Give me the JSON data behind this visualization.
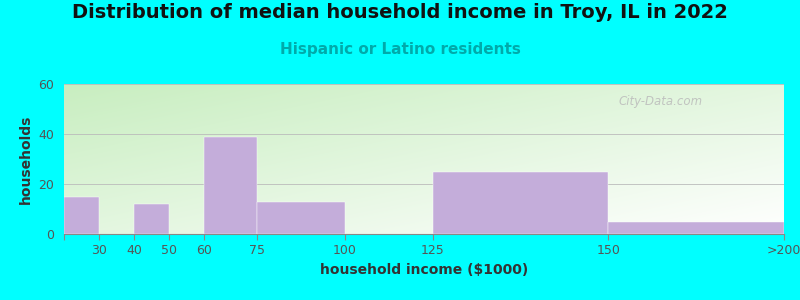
{
  "title": "Distribution of median household income in Troy, IL in 2022",
  "subtitle": "Hispanic or Latino residents",
  "xlabel": "household income ($1000)",
  "ylabel": "households",
  "background_outer": "#00FFFF",
  "bar_color": "#C4ADDA",
  "categories": [
    "30",
    "40",
    "50",
    "60",
    "75",
    "100",
    "125",
    "150",
    ">200"
  ],
  "values": [
    15,
    0,
    12,
    0,
    39,
    13,
    0,
    25,
    5
  ],
  "bar_lefts": [
    20,
    30,
    40,
    50,
    60,
    75,
    100,
    125,
    175
  ],
  "bar_rights": [
    30,
    40,
    50,
    60,
    75,
    100,
    125,
    175,
    225
  ],
  "xtick_positions": [
    20,
    30,
    40,
    50,
    60,
    75,
    100,
    125,
    175,
    225
  ],
  "xtick_labels": [
    "",
    "30",
    "40",
    "50",
    "60",
    "75",
    "100",
    "125",
    "150",
    ">200"
  ],
  "xlim": [
    20,
    225
  ],
  "ylim": [
    0,
    60
  ],
  "yticks": [
    0,
    20,
    40,
    60
  ],
  "watermark": "City-Data.com",
  "title_fontsize": 14,
  "subtitle_fontsize": 11,
  "axis_label_fontsize": 10,
  "tick_fontsize": 9
}
